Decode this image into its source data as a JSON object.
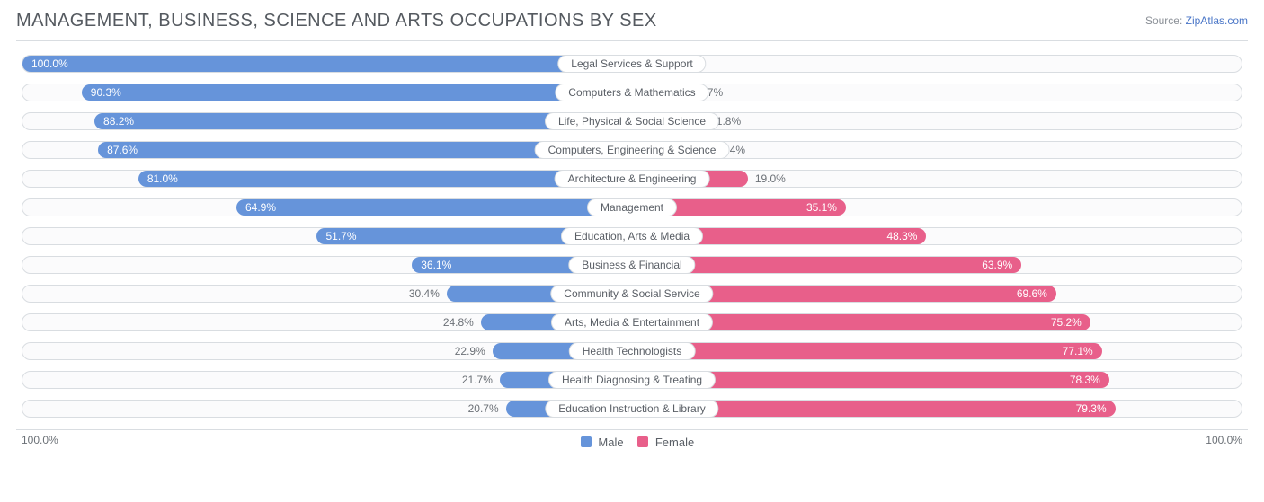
{
  "title": "MANAGEMENT, BUSINESS, SCIENCE AND ARTS OCCUPATIONS BY SEX",
  "source_label": "Source:",
  "source_name": "ZipAtlas.com",
  "type": "diverging-bar",
  "colors": {
    "male": "#6694da",
    "female": "#e85f8a",
    "track_border": "#d9dde1",
    "track_bg": "#fbfbfc",
    "text": "#5a5f66",
    "muted": "#6b7076",
    "background": "#ffffff"
  },
  "axis": {
    "left": "100.0%",
    "right": "100.0%",
    "max": 100.0
  },
  "legend": {
    "male": "Male",
    "female": "Female"
  },
  "value_inside_threshold": 35.0,
  "rows": [
    {
      "label": "Legal Services & Support",
      "male": 100.0,
      "female": 0.0
    },
    {
      "label": "Computers & Mathematics",
      "male": 90.3,
      "female": 9.7
    },
    {
      "label": "Life, Physical & Social Science",
      "male": 88.2,
      "female": 11.8
    },
    {
      "label": "Computers, Engineering & Science",
      "male": 87.6,
      "female": 12.4
    },
    {
      "label": "Architecture & Engineering",
      "male": 81.0,
      "female": 19.0
    },
    {
      "label": "Management",
      "male": 64.9,
      "female": 35.1
    },
    {
      "label": "Education, Arts & Media",
      "male": 51.7,
      "female": 48.3
    },
    {
      "label": "Business & Financial",
      "male": 36.1,
      "female": 63.9
    },
    {
      "label": "Community & Social Service",
      "male": 30.4,
      "female": 69.6
    },
    {
      "label": "Arts, Media & Entertainment",
      "male": 24.8,
      "female": 75.2
    },
    {
      "label": "Health Technologists",
      "male": 22.9,
      "female": 77.1
    },
    {
      "label": "Health Diagnosing & Treating",
      "male": 21.7,
      "female": 78.3
    },
    {
      "label": "Education Instruction & Library",
      "male": 20.7,
      "female": 79.3
    }
  ]
}
